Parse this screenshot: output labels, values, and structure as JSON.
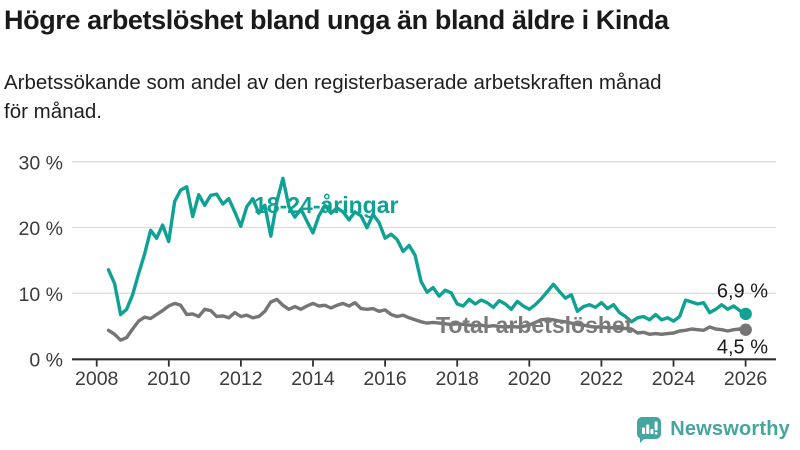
{
  "header": {
    "title": "Högre arbetslöshet bland unga än bland äldre i Kinda",
    "subtitle_lines": [
      "Arbetssökande som andel av den registerbaserade arbetskraften månad",
      "för månad."
    ]
  },
  "colors": {
    "accent_teal": "#0fa294",
    "line_gray": "#757575",
    "grid": "#dcdcdc",
    "axis": "#2e2e2e",
    "title_text": "#1a1a1a",
    "brand_teal": "#45a59f"
  },
  "chart_data": {
    "type": "line",
    "title": "Högre arbetslöshet bland unga än bland äldre i Kinda",
    "subtitle": "Arbetssökande som andel av den registerbaserade arbetskraften månad för månad.",
    "xlabel": "",
    "ylabel": "",
    "unit": "%",
    "grid": "horizontal",
    "legend_position": "inline-labels",
    "x_domain": [
      2007.32,
      2026.84
    ],
    "y_domain": [
      0,
      31.95
    ],
    "x_axis": {
      "tick_years": [
        2008,
        2010,
        2012,
        2014,
        2016,
        2018,
        2020,
        2022,
        2024,
        2026
      ],
      "tick_labels": [
        "2008",
        "2010",
        "2012",
        "2014",
        "2016",
        "2018",
        "2020",
        "2022",
        "2024",
        "2026"
      ]
    },
    "y_axis": {
      "tick_values": [
        30,
        20,
        10,
        0
      ],
      "tick_labels": [
        "30 %",
        "20 %",
        "10 %",
        "0 %"
      ]
    },
    "series": [
      {
        "name": "18-24-åringar",
        "color": "#0fa294",
        "start_year": 2008.3333,
        "step_years": 0.16667,
        "end_label": "6,9 %",
        "end_value": 6.9,
        "values": [
          13.6,
          11.5,
          6.8,
          7.6,
          9.8,
          13.0,
          16.0,
          19.6,
          18.4,
          20.4,
          17.9,
          24.0,
          25.7,
          26.2,
          21.7,
          25.0,
          23.4,
          24.9,
          25.1,
          23.6,
          24.4,
          22.4,
          20.2,
          23.2,
          24.4,
          22.2,
          23.4,
          18.7,
          24.0,
          27.5,
          23.2,
          21.6,
          22.8,
          21.0,
          19.2,
          21.8,
          23.4,
          22.2,
          23.0,
          22.4,
          21.2,
          22.4,
          21.8,
          20.0,
          22.0,
          20.8,
          18.4,
          19.0,
          18.2,
          16.4,
          17.3,
          15.8,
          11.8,
          10.2,
          10.9,
          9.6,
          10.5,
          10.1,
          8.4,
          8.1,
          9.1,
          8.4,
          9.0,
          8.6,
          7.9,
          8.9,
          8.4,
          7.6,
          8.8,
          8.1,
          7.6,
          8.3,
          9.2,
          10.3,
          11.4,
          10.3,
          9.3,
          9.8,
          7.3,
          8.0,
          8.3,
          7.9,
          8.6,
          7.7,
          8.3,
          7.1,
          6.5,
          5.7,
          6.3,
          6.5,
          6.0,
          6.8,
          6.0,
          6.3,
          5.8,
          6.5,
          9.0,
          8.7,
          8.4,
          8.6,
          7.1,
          7.6,
          8.3,
          7.6,
          8.1,
          7.4,
          6.9
        ]
      },
      {
        "name": "Total arbetslöshet",
        "color": "#757575",
        "start_year": 2008.3333,
        "step_years": 0.16667,
        "end_label": "4,5 %",
        "end_value": 4.5,
        "values": [
          4.4,
          3.8,
          2.9,
          3.3,
          4.6,
          5.8,
          6.4,
          6.2,
          6.8,
          7.4,
          8.1,
          8.5,
          8.2,
          6.8,
          6.9,
          6.5,
          7.6,
          7.4,
          6.5,
          6.6,
          6.3,
          7.1,
          6.5,
          6.7,
          6.3,
          6.5,
          7.3,
          8.7,
          9.1,
          8.2,
          7.6,
          8.0,
          7.6,
          8.1,
          8.5,
          8.1,
          8.2,
          7.8,
          8.2,
          8.5,
          8.1,
          8.6,
          7.7,
          7.6,
          7.7,
          7.3,
          7.5,
          6.8,
          6.5,
          6.7,
          6.3,
          6.0,
          5.7,
          5.5,
          5.6,
          5.5,
          5.4,
          5.3,
          5.4,
          5.3,
          5.2,
          5.1,
          5.2,
          5.0,
          5.1,
          5.0,
          4.9,
          5.0,
          4.9,
          5.0,
          5.2,
          5.6,
          6.0,
          6.1,
          6.0,
          5.8,
          5.7,
          5.5,
          5.3,
          5.2,
          5.0,
          4.9,
          4.9,
          4.8,
          4.8,
          4.7,
          4.7,
          4.6,
          4.0,
          4.1,
          3.8,
          3.9,
          3.8,
          3.9,
          4.0,
          4.3,
          4.4,
          4.6,
          4.5,
          4.4,
          4.9,
          4.6,
          4.5,
          4.3,
          4.5,
          4.6,
          4.5
        ]
      }
    ]
  },
  "footer": {
    "brand": "Newsworthy"
  }
}
